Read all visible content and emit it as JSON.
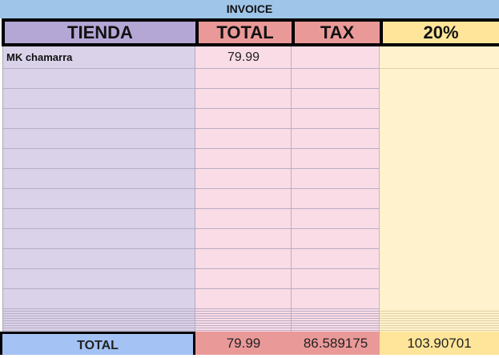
{
  "title": "INVOICE",
  "headers": {
    "store": "TIENDA",
    "total": "TOTAL",
    "tax": "TAX",
    "pct": "20%"
  },
  "rows": [
    {
      "store": "MK chamarra",
      "total": "79.99",
      "tax": "",
      "pct": ""
    }
  ],
  "footer": {
    "label": "TOTAL",
    "total": "79.99",
    "tax": "86.589175",
    "pct": "103.90701"
  },
  "colors": {
    "title_bg": "#9fc5e8",
    "store": "#d9d2e9",
    "store_header": "#b4a7d6",
    "total": "#fadce6",
    "total_header": "#ea9999",
    "pct": "#fff2cc",
    "pct_header": "#ffe599",
    "footer_label": "#a4c2f4"
  }
}
